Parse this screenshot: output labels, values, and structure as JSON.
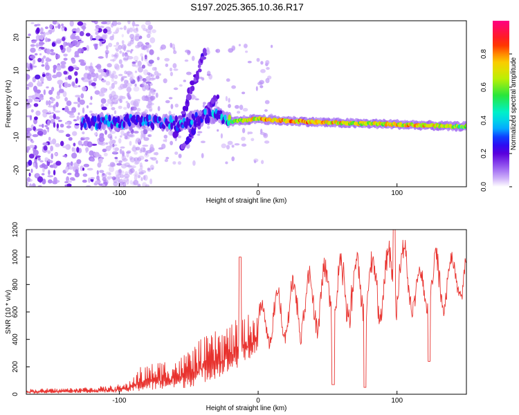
{
  "title": "S197.2025.365.10.36.R17",
  "chart_data": [
    {
      "type": "heatmap",
      "name": "spectrogram",
      "xlabel": "Height of straight line (km)",
      "ylabel": "Frequency (Hz)",
      "xlim": [
        -167,
        150
      ],
      "ylim": [
        -25,
        25
      ],
      "xticks": [
        -100,
        0,
        100
      ],
      "xtick_labels": [
        "-100",
        "0",
        "100"
      ],
      "yticks": [
        20,
        10,
        0,
        -10,
        -20
      ],
      "ytick_labels": [
        "20",
        "10",
        "0",
        "-10",
        "-20"
      ],
      "colorbar": {
        "label": "Normalized spectral amplitude",
        "range": [
          0,
          1
        ],
        "ticks": [
          0.0,
          0.2,
          0.4,
          0.6,
          0.8
        ],
        "tick_labels": [
          "0.0",
          "0.2",
          "0.4",
          "0.6",
          "0.8"
        ],
        "colormap": "rainbow (white-purple-blue-cyan-green-yellow-orange-red-pink)"
      },
      "ridge": [
        {
          "x": -125,
          "freq": -5.2,
          "amp": 0.3
        },
        {
          "x": -110,
          "freq": -5.5,
          "amp": 0.35
        },
        {
          "x": -100,
          "freq": -6.0,
          "amp": 0.35
        },
        {
          "x": -90,
          "freq": -5.0,
          "amp": 0.3
        },
        {
          "x": -80,
          "freq": -5.5,
          "amp": 0.3
        },
        {
          "x": -60,
          "freq": -6.0,
          "amp": 0.35
        },
        {
          "x": -40,
          "freq": -4.0,
          "amp": 0.3
        },
        {
          "x": -30,
          "freq": -3.5,
          "amp": 0.4
        },
        {
          "x": -20,
          "freq": -5.5,
          "amp": 0.6
        },
        {
          "x": -10,
          "freq": -5.0,
          "amp": 0.7
        },
        {
          "x": 0,
          "freq": -4.5,
          "amp": 0.75
        },
        {
          "x": 10,
          "freq": -5.0,
          "amp": 0.85
        },
        {
          "x": 25,
          "freq": -5.2,
          "amp": 0.8
        },
        {
          "x": 40,
          "freq": -5.5,
          "amp": 0.8
        },
        {
          "x": 60,
          "freq": -5.8,
          "amp": 0.75
        },
        {
          "x": 80,
          "freq": -6.0,
          "amp": 0.7
        },
        {
          "x": 100,
          "freq": -6.2,
          "amp": 0.75
        },
        {
          "x": 120,
          "freq": -6.5,
          "amp": 0.8
        },
        {
          "x": 140,
          "freq": -6.8,
          "amp": 0.65
        },
        {
          "x": 150,
          "freq": -6.8,
          "amp": 0.6
        }
      ],
      "features": [
        {
          "description": "diagonal branch",
          "from": [
            -60,
            -10
          ],
          "to": [
            -38,
            16
          ]
        },
        {
          "description": "diagonal branch",
          "from": [
            -55,
            -14
          ],
          "to": [
            -30,
            3
          ]
        }
      ],
      "noise_region_x": [
        -167,
        -100
      ]
    },
    {
      "type": "line",
      "name": "snr",
      "xlabel": "Height of straight line (km)",
      "ylabel": "SNR (10 * v/v)",
      "xlim": [
        -167,
        150
      ],
      "ylim": [
        0,
        1200
      ],
      "xticks": [
        -100,
        0,
        100
      ],
      "xtick_labels": [
        "-100",
        "0",
        "100"
      ],
      "yticks": [
        0,
        200,
        400,
        600,
        800,
        1000,
        1200
      ],
      "ytick_labels": [
        "0",
        "200",
        "400",
        "600",
        "800",
        "1000",
        "1200"
      ],
      "color": "#e8322e",
      "envelope": [
        {
          "x": -167,
          "low": 5,
          "high": 40
        },
        {
          "x": -140,
          "low": 10,
          "high": 45
        },
        {
          "x": -110,
          "low": 10,
          "high": 60
        },
        {
          "x": -95,
          "low": 15,
          "high": 80
        },
        {
          "x": -85,
          "low": 20,
          "high": 200
        },
        {
          "x": -70,
          "low": 30,
          "high": 250
        },
        {
          "x": -55,
          "low": 40,
          "high": 280
        },
        {
          "x": -45,
          "low": 60,
          "high": 380
        },
        {
          "x": -35,
          "low": 100,
          "high": 440
        },
        {
          "x": -20,
          "low": 150,
          "high": 520
        },
        {
          "x": -5,
          "low": 260,
          "high": 600
        },
        {
          "x": 10,
          "low": 380,
          "high": 720
        },
        {
          "x": 30,
          "low": 420,
          "high": 880
        },
        {
          "x": 50,
          "low": 480,
          "high": 960
        },
        {
          "x": 70,
          "low": 540,
          "high": 1020
        },
        {
          "x": 90,
          "low": 560,
          "high": 1000
        },
        {
          "x": 100,
          "low": 600,
          "high": 1200
        },
        {
          "x": 115,
          "low": 580,
          "high": 900
        },
        {
          "x": 130,
          "low": 600,
          "high": 1060
        },
        {
          "x": 150,
          "low": 700,
          "high": 1000
        }
      ],
      "spikes": [
        {
          "x": -13,
          "y": 1000
        },
        {
          "x": 54,
          "y": 70
        },
        {
          "x": 77,
          "y": 50
        },
        {
          "x": 98,
          "y": 1200
        },
        {
          "x": 123,
          "y": 240
        }
      ]
    }
  ]
}
